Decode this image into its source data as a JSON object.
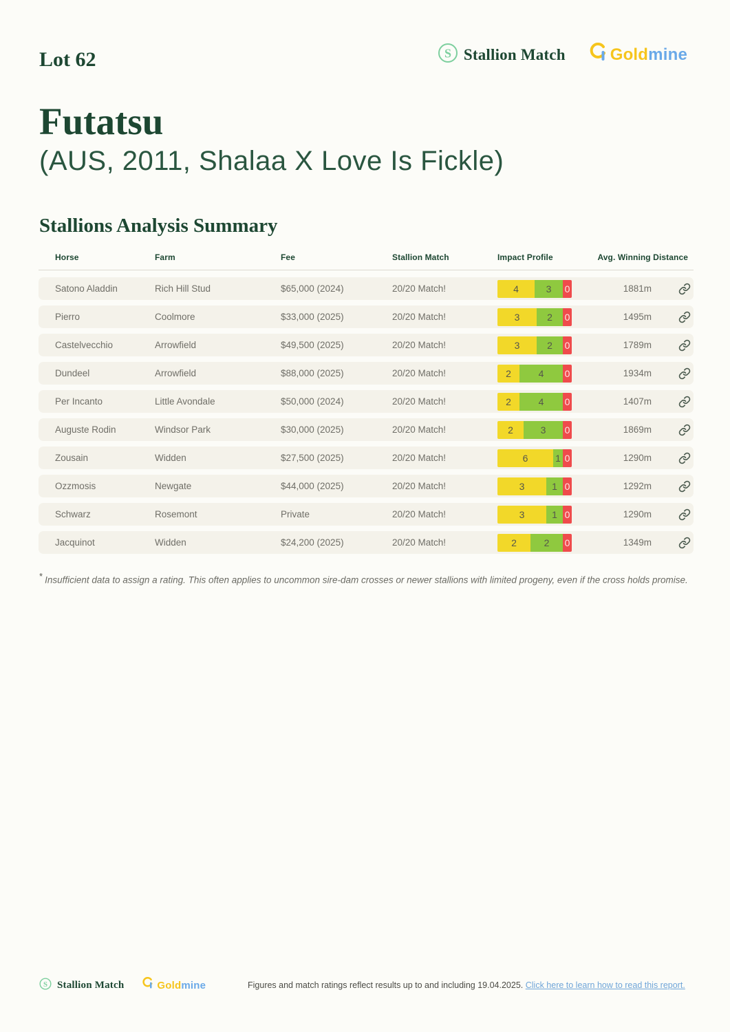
{
  "page": {
    "lot": "Lot 62",
    "title": "Futatsu",
    "subtitle": "(AUS, 2011, Shalaa X Love Is Fickle)",
    "section_title": "Stallions Analysis Summary",
    "footnote_marker": "*",
    "footnote": "Insufficient data to assign a rating. This often applies to uncommon sire-dam crosses or newer stallions with limited progeny, even if the cross holds promise."
  },
  "brand": {
    "stallion_match": "Stallion Match",
    "goldmine_gold": "Gold",
    "goldmine_mine": "mine"
  },
  "colors": {
    "dark_green": "#1d4732",
    "row_bg": "#f4f2ea",
    "impact_yellow": "#f2d829",
    "impact_green": "#8fc93f",
    "impact_red": "#ef4b4c",
    "link_blue": "#6fa5d8",
    "gold": "#f6c51d",
    "logo_green": "#7dcf9e"
  },
  "table": {
    "headers": [
      "Horse",
      "Farm",
      "Fee",
      "Stallion Match",
      "Impact Profile",
      "Avg. Winning Distance"
    ],
    "rows": [
      {
        "horse": "Satono Aladdin",
        "farm": "Rich Hill Stud",
        "fee": "$65,000 (2024)",
        "match": "20/20 Match!",
        "impact": {
          "yellow": 4,
          "green": 3,
          "red": 0
        },
        "distance": "1881m"
      },
      {
        "horse": "Pierro",
        "farm": "Coolmore",
        "fee": "$33,000 (2025)",
        "match": "20/20 Match!",
        "impact": {
          "yellow": 3,
          "green": 2,
          "red": 0
        },
        "distance": "1495m"
      },
      {
        "horse": "Castelvecchio",
        "farm": "Arrowfield",
        "fee": "$49,500 (2025)",
        "match": "20/20 Match!",
        "impact": {
          "yellow": 3,
          "green": 2,
          "red": 0
        },
        "distance": "1789m"
      },
      {
        "horse": "Dundeel",
        "farm": "Arrowfield",
        "fee": "$88,000 (2025)",
        "match": "20/20 Match!",
        "impact": {
          "yellow": 2,
          "green": 4,
          "red": 0
        },
        "distance": "1934m"
      },
      {
        "horse": "Per Incanto",
        "farm": "Little Avondale",
        "fee": "$50,000 (2024)",
        "match": "20/20 Match!",
        "impact": {
          "yellow": 2,
          "green": 4,
          "red": 0
        },
        "distance": "1407m"
      },
      {
        "horse": "Auguste Rodin",
        "farm": "Windsor Park",
        "fee": "$30,000 (2025)",
        "match": "20/20 Match!",
        "impact": {
          "yellow": 2,
          "green": 3,
          "red": 0
        },
        "distance": "1869m"
      },
      {
        "horse": "Zousain",
        "farm": "Widden",
        "fee": "$27,500 (2025)",
        "match": "20/20 Match!",
        "impact": {
          "yellow": 6,
          "green": 1,
          "red": 0
        },
        "distance": "1290m"
      },
      {
        "horse": "Ozzmosis",
        "farm": "Newgate",
        "fee": "$44,000 (2025)",
        "match": "20/20 Match!",
        "impact": {
          "yellow": 3,
          "green": 1,
          "red": 0
        },
        "distance": "1292m"
      },
      {
        "horse": "Schwarz",
        "farm": "Rosemont",
        "fee": "Private",
        "match": "20/20 Match!",
        "impact": {
          "yellow": 3,
          "green": 1,
          "red": 0
        },
        "distance": "1290m"
      },
      {
        "horse": "Jacquinot",
        "farm": "Widden",
        "fee": "$24,200 (2025)",
        "match": "20/20 Match!",
        "impact": {
          "yellow": 2,
          "green": 2,
          "red": 0
        },
        "distance": "1349m"
      }
    ]
  },
  "footer": {
    "text": "Figures and match ratings reflect results up to and including 19.04.2025.",
    "link": "Click here to learn how to read this report."
  }
}
